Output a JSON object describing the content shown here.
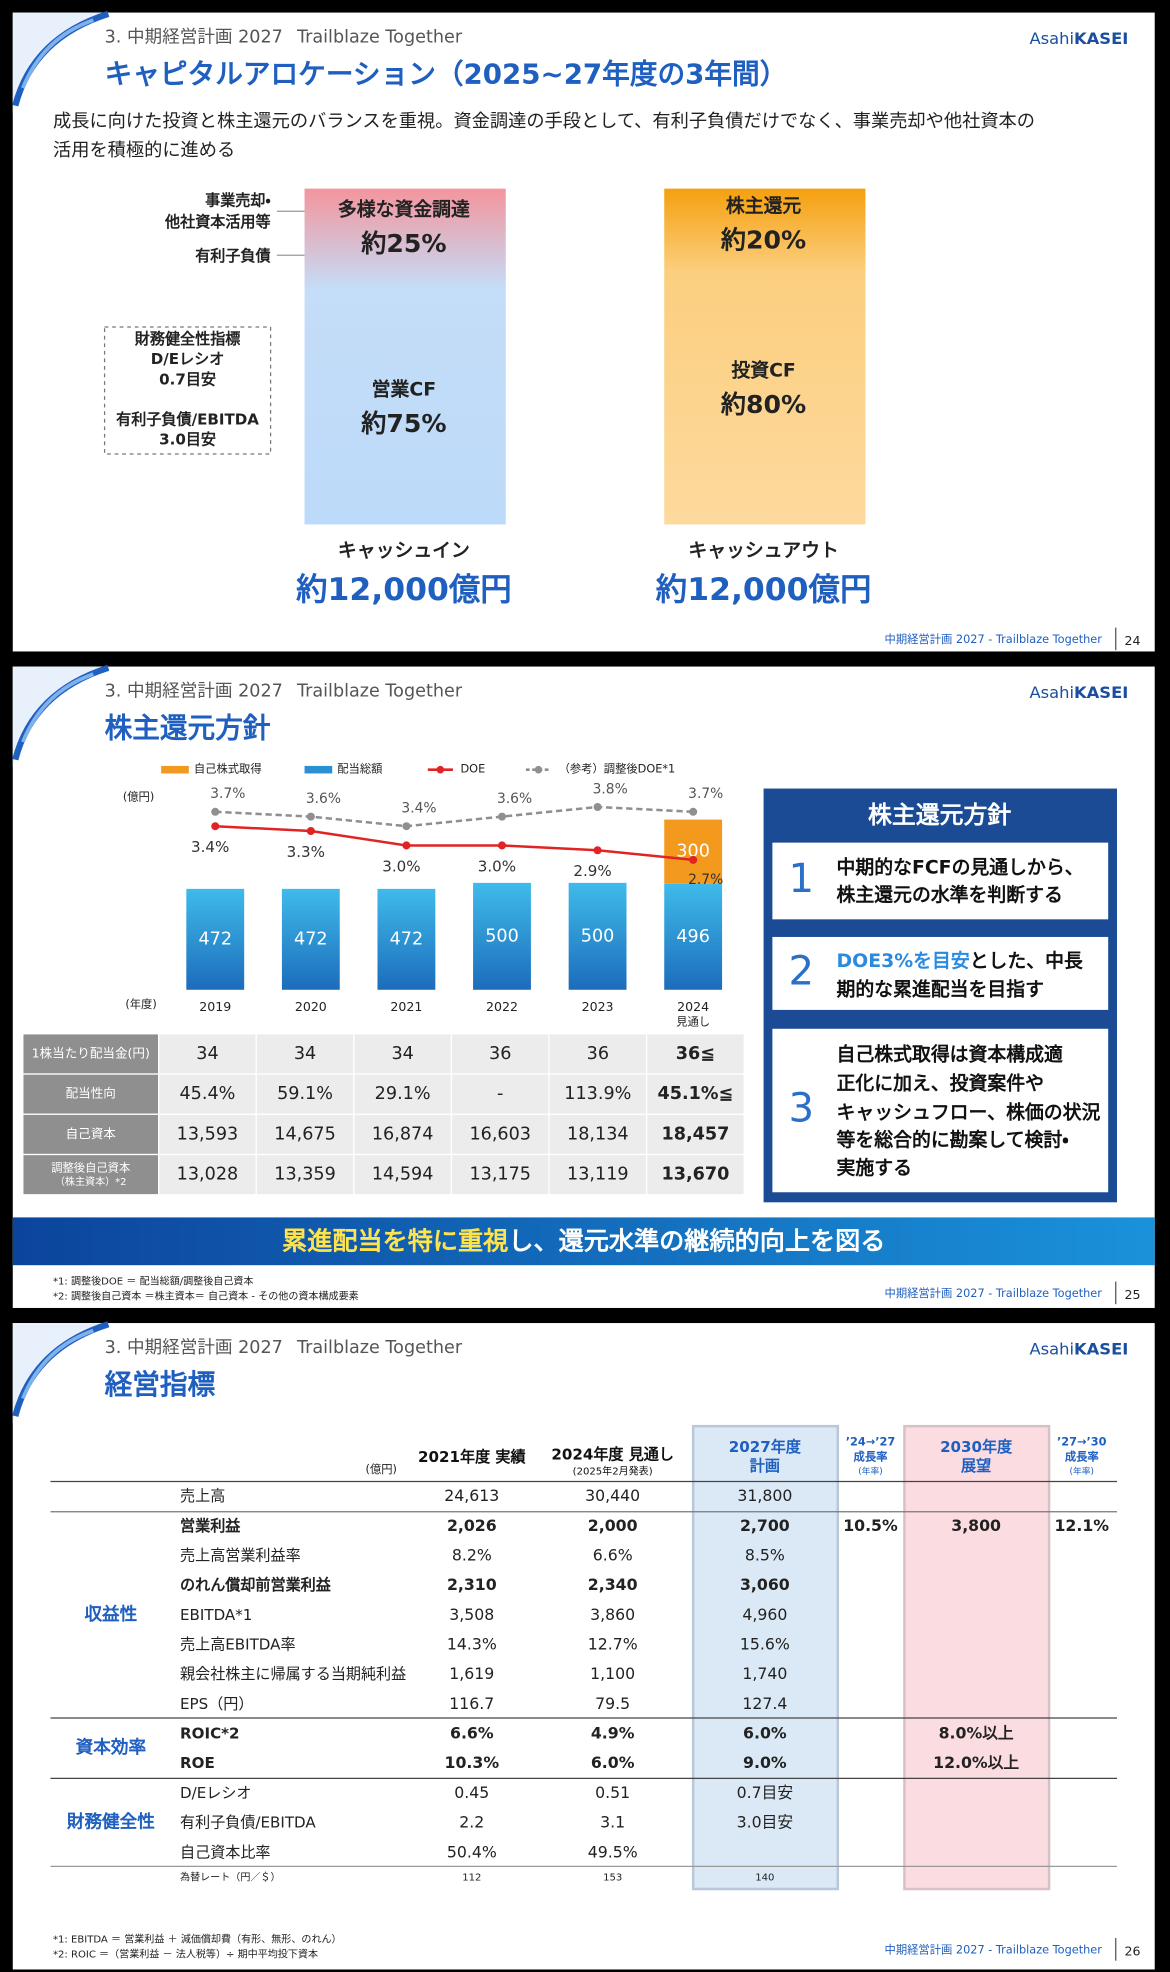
{
  "slides": [
    {
      "section": "3. 中期経営計画 2027",
      "tagline": "Trailblaze Together",
      "logo": [
        "Asahi",
        "KASEI"
      ],
      "title": "キャピタルアロケーション（2025~27年度の3年間）",
      "lead": [
        "成長に向けた投資と株主還元のバランスを重視。資金調達の手段として、有利子負債だけでなく、事業売却や他社資本の",
        "活用を積極的に進める"
      ],
      "side_labels": [
        "事業売却・",
        "他社資本活用等",
        "有利子負債"
      ],
      "box": [
        "財務健全性指標",
        "D/Eレシオ",
        "0.7目安",
        "有利子負債/EBITDA",
        "3.0目安"
      ],
      "cash_in": {
        "segments": [
          {
            "label": "多様な資金調達",
            "share": "約25%"
          },
          {
            "label": "営業CF",
            "share": "約75%"
          }
        ],
        "label": "キャッシュイン",
        "total": "約12,000億円"
      },
      "cash_out": {
        "segments": [
          {
            "label": "株主還元",
            "share": "約20%"
          },
          {
            "label": "投資CF",
            "share": "約80%"
          }
        ],
        "label": "キャッシュアウト",
        "total": "約12,000億円"
      },
      "footer": "中期経営計画 2027 - Trailblaze Together",
      "page": 24
    },
    {
      "section": "3. 中期経営計画 2027",
      "tagline": "Trailblaze Together",
      "logo": [
        "Asahi",
        "KASEI"
      ],
      "title": "株主還元方針",
      "table": {
        "row_labels": [
          "1株当たり配当金(円)",
          "配当性向",
          "自己資本",
          [
            "調整後自己資本",
            "（株主資本）*2"
          ]
        ],
        "rows": [
          [
            "34",
            "34",
            "34",
            "36",
            "36",
            "36≦"
          ],
          [
            "45.4%",
            "59.1%",
            "29.1%",
            "-",
            "113.9%",
            "45.1%≦"
          ],
          [
            "13,593",
            "14,675",
            "16,874",
            "16,603",
            "18,134",
            "18,457"
          ],
          [
            "13,028",
            "13,359",
            "14,594",
            "13,175",
            "13,119",
            "13,670"
          ]
        ]
      },
      "policy": {
        "title": "株主還元方針",
        "items": [
          {
            "number": 1,
            "lines": [
              "中期的なFCFの見通しから、",
              "株主還元の水準を判断する"
            ]
          },
          {
            "number": 2,
            "highlight": "DOE3%を目安",
            "lines": [
              "とした、中長",
              "期的な累進配当を目指す"
            ]
          },
          {
            "number": 3,
            "lines": [
              "自己株式取得は資本構成適",
              "正化に加え、投資案件や",
              "キャッシュフロー、株価の状況",
              "等を総合的に勘案して検討・",
              "実施する"
            ]
          }
        ]
      },
      "banner": [
        "累進配当を特に重視",
        "し、還元水準の継続的向上を図る"
      ],
      "notes": [
        "*1: 調整後DOE ＝ 配当総額/調整後自己資本",
        "*2: 調整後自己資本 ＝株主資本＝ 自己資本 - その他の資本構成要素"
      ],
      "footer": "中期経営計画 2027 - Trailblaze Together",
      "page": 25
    },
    {
      "section": "3. 中期経営計画 2027",
      "tagline": "Trailblaze Together",
      "logo": [
        "Asahi",
        "KASEI"
      ],
      "title": "経営指標",
      "unit": "(億円)",
      "columns": [
        {
          "lines": [
            "2021年度 実績"
          ]
        },
        {
          "lines": [
            "2024年度 見通し",
            "(2025年2月発表)"
          ]
        },
        {
          "lines": [
            "2027年度",
            "計画"
          ]
        },
        {
          "lines": [
            "’24→’27",
            "成長率",
            "(年率)"
          ]
        },
        {
          "lines": [
            "2030年度",
            "展望"
          ]
        },
        {
          "lines": [
            "’27→’30",
            "成長率",
            "(年率)"
          ]
        }
      ],
      "rows": [
        {
          "label": "売上高",
          "values": [
            "24,613",
            "30,440",
            "31,800",
            null,
            null,
            null
          ]
        },
        {
          "label": "営業利益",
          "bold": true,
          "values": [
            "2,026",
            "2,000",
            "2,700",
            "10.5%",
            "3,800",
            "12.1%"
          ]
        },
        {
          "label": "売上高営業利益率",
          "values": [
            "8.2%",
            "6.6%",
            "8.5%",
            null,
            null,
            null
          ]
        },
        {
          "label": "のれん償却前営業利益",
          "bold": true,
          "values": [
            "2,310",
            "2,340",
            "3,060",
            null,
            null,
            null
          ]
        },
        {
          "label": "EBITDA*1",
          "values": [
            "3,508",
            "3,860",
            "4,960",
            null,
            null,
            null
          ]
        },
        {
          "label": "売上高EBITDA率",
          "values": [
            "14.3%",
            "12.7%",
            "15.6%",
            null,
            null,
            null
          ]
        },
        {
          "label": "親会社株主に帰属する当期純利益",
          "values": [
            "1,619",
            "1,100",
            "1,740",
            null,
            null,
            null
          ]
        },
        {
          "label": "EPS（円）",
          "values": [
            "116.7",
            "79.5",
            "127.4",
            null,
            null,
            null
          ]
        },
        {
          "label": "ROIC*2",
          "bold": true,
          "values": [
            "6.6%",
            "4.9%",
            "6.0%",
            null,
            "8.0%以上",
            null
          ]
        },
        {
          "label": "ROE",
          "bold": true,
          "values": [
            "10.3%",
            "6.0%",
            "9.0%",
            null,
            "12.0%以上",
            null
          ]
        },
        {
          "label": "D/Eレシオ",
          "values": [
            "0.45",
            "0.51",
            "0.7目安",
            null,
            null,
            null
          ]
        },
        {
          "label": "有利子負債/EBITDA",
          "values": [
            "2.2",
            "3.1",
            "3.0目安",
            null,
            null,
            null
          ]
        },
        {
          "label": "自己資本比率",
          "values": [
            "50.4%",
            "49.5%",
            null,
            null,
            null,
            null
          ]
        },
        {
          "label": "為替レート（円／＄）",
          "small": true,
          "values": [
            "112",
            "153",
            "140",
            null,
            null,
            null
          ]
        }
      ],
      "groups": [
        {
          "label": "収益性"
        },
        {
          "label": "資本効率"
        },
        {
          "label": "財務健全性"
        }
      ],
      "notes": [
        "*1: EBITDA ＝ 営業利益 ＋ 減価償却費（有形、無形、のれん）",
        "*2: ROIC ＝（営業利益 － 法人税等）÷ 期中平均投下資本"
      ],
      "footer": "中期経営計画 2027 - Trailblaze Together",
      "page": 26
    }
  ],
  "chart_data": {
    "type": "bar",
    "unit_label": "(億円)",
    "x_label": "(年度)",
    "categories": [
      "2019",
      "2020",
      "2021",
      "2022",
      "2023",
      "2024"
    ],
    "category_sublabels": [
      null,
      null,
      null,
      null,
      null,
      "見通し"
    ],
    "series": [
      {
        "name": "自己株式取得",
        "color": "#f39a1e",
        "values": [
          null,
          null,
          null,
          null,
          null,
          300
        ]
      },
      {
        "name": "配当総額",
        "color": "#2b8fd4",
        "values": [
          472,
          472,
          472,
          500,
          500,
          496
        ]
      },
      {
        "name": "DOE",
        "type": "line",
        "axis": "y2",
        "color": "#e02424",
        "values": [
          3.4,
          3.3,
          3.0,
          3.0,
          2.9,
          2.7
        ],
        "value_labels": [
          "3.4%",
          "3.3%",
          "3.0%",
          "3.0%",
          "2.9%",
          "2.7%"
        ]
      },
      {
        "name": "（参考）調整後DOE*1",
        "type": "line",
        "axis": "y2",
        "dashed": true,
        "color": "#8f8f8f",
        "values": [
          3.7,
          3.6,
          3.4,
          3.6,
          3.8,
          3.7
        ],
        "value_labels": [
          "3.7%",
          "3.6%",
          "3.4%",
          "3.6%",
          "3.8%",
          "3.7%"
        ]
      }
    ],
    "ylim": [
      0,
      900
    ],
    "y2lim": [
      0,
      4
    ]
  }
}
